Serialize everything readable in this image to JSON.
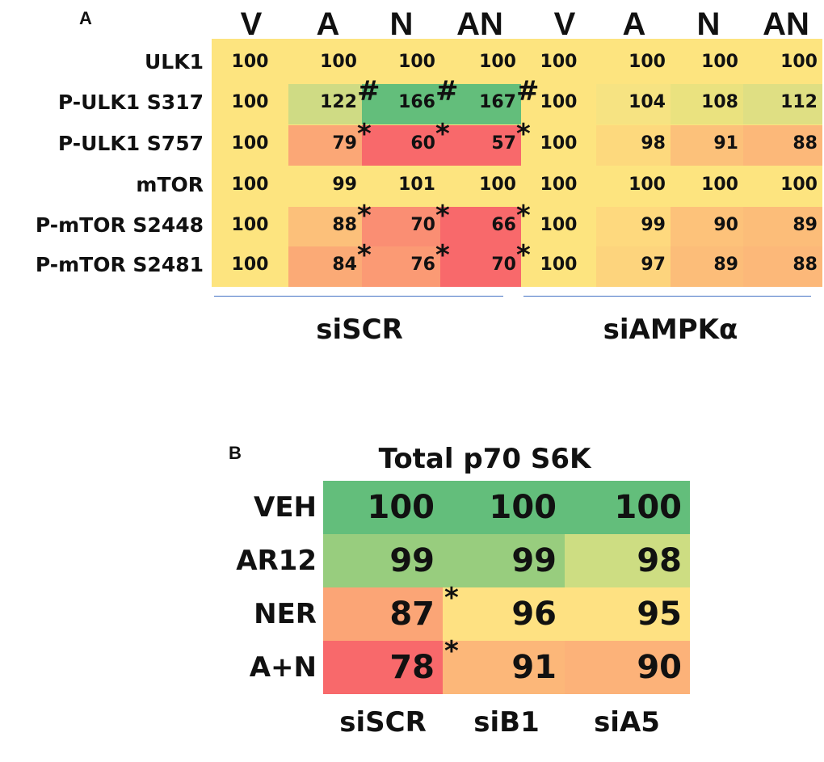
{
  "panel_a": {
    "label": "A",
    "column_headers": [
      "V",
      "A",
      "N",
      "AN",
      "V",
      "A",
      "N",
      "AN"
    ],
    "groups": [
      "siSCR",
      "siAMPKα"
    ]
  },
  "panel_b": {
    "label": "B",
    "title": "Total p70 S6K",
    "column_headers": [
      "siSCR",
      "siB1",
      "siA5"
    ]
  },
  "chart_data": [
    {
      "type": "heatmap",
      "title": "",
      "columns": [
        "V",
        "A",
        "N",
        "AN",
        "V",
        "A",
        "N",
        "AN"
      ],
      "column_groups": [
        {
          "name": "siSCR",
          "columns": [
            0,
            1,
            2,
            3
          ]
        },
        {
          "name": "siAMPKα",
          "columns": [
            4,
            5,
            6,
            7
          ]
        }
      ],
      "rows": [
        "ULK1",
        "P-ULK1 S317",
        "P-ULK1 S757",
        "mTOR",
        "P-mTOR S2448",
        "P-mTOR S2481"
      ],
      "values": [
        [
          100,
          100,
          100,
          100,
          100,
          100,
          100,
          100
        ],
        [
          100,
          122,
          166,
          167,
          100,
          104,
          108,
          112
        ],
        [
          100,
          79,
          60,
          57,
          100,
          98,
          91,
          88
        ],
        [
          100,
          99,
          101,
          100,
          100,
          100,
          100,
          100
        ],
        [
          100,
          88,
          70,
          66,
          100,
          99,
          90,
          89
        ],
        [
          100,
          84,
          76,
          70,
          100,
          97,
          89,
          88
        ]
      ],
      "colors": [
        [
          "#fde47f",
          "#fde47f",
          "#fde47f",
          "#fde47f",
          "#fde47f",
          "#fde47f",
          "#fde47f",
          "#fde47f"
        ],
        [
          "#fde47f",
          "#cfdb84",
          "#63be7b",
          "#63be7b",
          "#fde47f",
          "#f6e382",
          "#eae27f",
          "#dfdf83"
        ],
        [
          "#fde47f",
          "#fba776",
          "#f8696b",
          "#f8696b",
          "#fde47f",
          "#fdd97d",
          "#fcc17a",
          "#fcb879"
        ],
        [
          "#fde47f",
          "#fde47f",
          "#fde47f",
          "#fde47f",
          "#fde47f",
          "#fde47f",
          "#fde47f",
          "#fde47f"
        ],
        [
          "#fde47f",
          "#fcc07a",
          "#fa8e73",
          "#f8696b",
          "#fde47f",
          "#fed97e",
          "#fdc27a",
          "#fcbd79"
        ],
        [
          "#fde47f",
          "#fbaa76",
          "#fb9a74",
          "#f8696b",
          "#fde47f",
          "#fdd47d",
          "#fcbd79",
          "#fcb879"
        ]
      ],
      "annotations": [
        {
          "row": 1,
          "after_col": 1,
          "symbol": "#"
        },
        {
          "row": 1,
          "after_col": 2,
          "symbol": "#"
        },
        {
          "row": 1,
          "after_col": 3,
          "symbol": "#"
        },
        {
          "row": 2,
          "after_col": 1,
          "symbol": "*"
        },
        {
          "row": 2,
          "after_col": 2,
          "symbol": "*"
        },
        {
          "row": 2,
          "after_col": 3,
          "symbol": "*"
        },
        {
          "row": 4,
          "after_col": 1,
          "symbol": "*"
        },
        {
          "row": 4,
          "after_col": 2,
          "symbol": "*"
        },
        {
          "row": 4,
          "after_col": 3,
          "symbol": "*"
        },
        {
          "row": 5,
          "after_col": 1,
          "symbol": "*"
        },
        {
          "row": 5,
          "after_col": 2,
          "symbol": "*"
        },
        {
          "row": 5,
          "after_col": 3,
          "symbol": "*"
        }
      ]
    },
    {
      "type": "heatmap",
      "title": "Total p70 S6K",
      "columns": [
        "siSCR",
        "siB1",
        "siA5"
      ],
      "rows": [
        "VEH",
        "AR12",
        "NER",
        "A+N"
      ],
      "values": [
        [
          100,
          100,
          100
        ],
        [
          99,
          99,
          98
        ],
        [
          87,
          96,
          95
        ],
        [
          78,
          91,
          90
        ]
      ],
      "colors": [
        [
          "#63be7b",
          "#63be7b",
          "#63be7b"
        ],
        [
          "#98cd7e",
          "#98cd7e",
          "#cddd82"
        ],
        [
          "#fba576",
          "#fee182",
          "#fee182"
        ],
        [
          "#f8696b",
          "#fcb779",
          "#fcb279"
        ]
      ],
      "annotations": [
        {
          "row": 2,
          "after_col": 0,
          "symbol": "*"
        },
        {
          "row": 3,
          "after_col": 0,
          "symbol": "*"
        }
      ]
    }
  ]
}
